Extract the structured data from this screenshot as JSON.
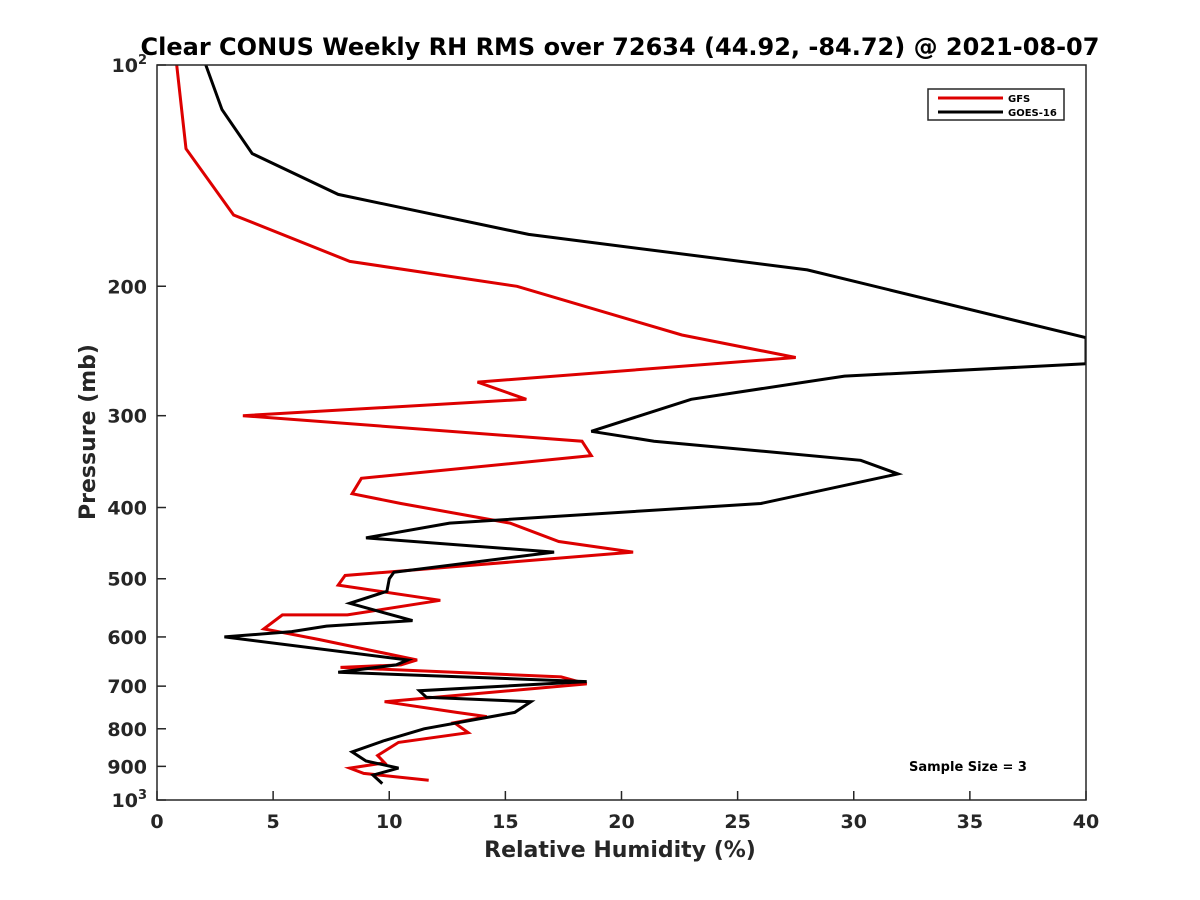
{
  "chart_data": {
    "type": "line",
    "title": "Clear CONUS Weekly RH RMS over 72634 (44.92, -84.72) @ 2021-08-07",
    "xlabel": "Relative Humidity (%)",
    "ylabel": "Pressure (mb)",
    "xlim": [
      0,
      40
    ],
    "ylim": [
      100,
      1000
    ],
    "yscale": "log",
    "y_reversed": true,
    "grid": false,
    "legend_position": "top-right",
    "x_ticks": [
      0,
      5,
      10,
      15,
      20,
      25,
      30,
      35,
      40
    ],
    "x_tick_labels": [
      "0",
      "5",
      "10",
      "15",
      "20",
      "25",
      "30",
      "35",
      "40"
    ],
    "y_ticks": [
      100,
      200,
      300,
      400,
      500,
      600,
      700,
      800,
      900,
      1000
    ],
    "y_tick_labels": [
      {
        "base": "10",
        "sup": "2"
      },
      {
        "base": "200"
      },
      {
        "base": "300"
      },
      {
        "base": "400"
      },
      {
        "base": "500"
      },
      {
        "base": "600"
      },
      {
        "base": "700"
      },
      {
        "base": "800"
      },
      {
        "base": "900"
      },
      {
        "base": "10",
        "sup": "3"
      }
    ],
    "annotation": "Sample Size = 3",
    "series": [
      {
        "name": "GFS",
        "color": "#dd0000",
        "x": [
          0.85,
          1.25,
          3.3,
          8.3,
          15.5,
          22.6,
          27.5,
          13.8,
          15.9,
          3.7,
          18.3,
          18.7,
          8.8,
          8.4,
          10.5,
          15.2,
          17.3,
          20.5,
          8.1,
          7.8,
          12.2,
          8.2,
          5.4,
          4.6,
          7.0,
          11.2,
          10.5,
          7.9,
          17.4,
          18.5,
          9.8,
          12.9,
          14.2,
          12.8,
          13.4,
          10.4,
          9.5,
          9.8,
          8.3,
          8.9,
          11.7
        ],
        "y": [
          100,
          130,
          160,
          185,
          200,
          233,
          250,
          270,
          285,
          300,
          325,
          340,
          365,
          383,
          395,
          420,
          445,
          460,
          495,
          510,
          535,
          560,
          560,
          585,
          605,
          645,
          655,
          660,
          680,
          695,
          735,
          760,
          770,
          785,
          810,
          835,
          870,
          890,
          905,
          920,
          940
        ]
      },
      {
        "name": "GOES-16",
        "color": "#000000",
        "x": [
          2.1,
          2.8,
          4.1,
          7.8,
          16.0,
          28.0,
          40.0,
          40.0,
          29.6,
          23.0,
          20.8,
          18.7,
          21.4,
          30.3,
          31.9,
          26.0,
          12.6,
          9.0,
          17.1,
          10.2,
          10.0,
          9.9,
          8.3,
          11.0,
          7.3,
          5.8,
          2.9,
          10.8,
          10.3,
          7.8,
          18.5,
          11.3,
          11.6,
          16.1,
          15.4,
          11.5,
          9.8,
          8.4,
          9.0,
          10.4,
          9.3,
          9.7
        ],
        "y": [
          100,
          115,
          132,
          150,
          170,
          190,
          235,
          255,
          265,
          285,
          300,
          315,
          325,
          345,
          360,
          395,
          420,
          440,
          460,
          490,
          500,
          520,
          540,
          570,
          580,
          590,
          600,
          645,
          655,
          670,
          690,
          710,
          725,
          735,
          760,
          800,
          830,
          860,
          885,
          905,
          925,
          950
        ]
      }
    ]
  }
}
